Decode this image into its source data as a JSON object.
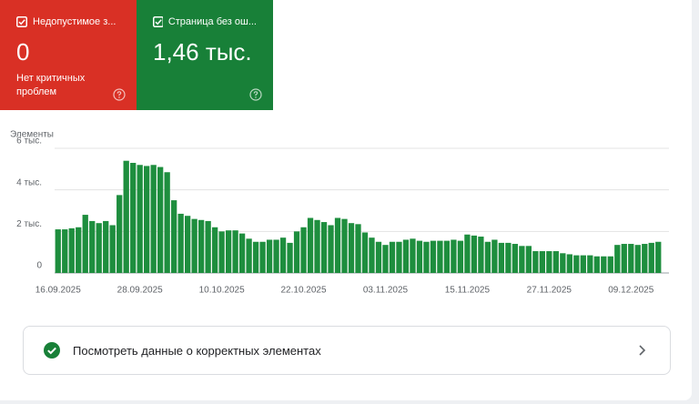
{
  "cards": [
    {
      "title": "Недопустимое з...",
      "value": "0",
      "subtitle": "Нет критичных проблем"
    },
    {
      "title": "Страница без ош...",
      "value": "1,46 тыс."
    }
  ],
  "chart_data": {
    "type": "bar",
    "y_axis_label": "Элементы",
    "color": "#1e8e3e",
    "grid": true,
    "ylim": [
      0,
      6000
    ],
    "yticks": [
      0,
      {
        "value": 2000,
        "label": "2 тыс."
      },
      {
        "value": 4000,
        "label": "4 тыс."
      },
      {
        "value": 6000,
        "label": "6 тыс."
      }
    ],
    "categories": [
      "16.09.2025",
      null,
      null,
      null,
      null,
      null,
      null,
      null,
      null,
      null,
      null,
      null,
      "28.09.2025",
      null,
      null,
      null,
      null,
      null,
      null,
      null,
      null,
      null,
      null,
      null,
      "10.10.2025",
      null,
      null,
      null,
      null,
      null,
      null,
      null,
      null,
      null,
      null,
      null,
      "22.10.2025",
      null,
      null,
      null,
      null,
      null,
      null,
      null,
      null,
      null,
      null,
      null,
      "03.11.2025",
      null,
      null,
      null,
      null,
      null,
      null,
      null,
      null,
      null,
      null,
      null,
      "15.11.2025",
      null,
      null,
      null,
      null,
      null,
      null,
      null,
      null,
      null,
      null,
      null,
      "27.11.2025",
      null,
      null,
      null,
      null,
      null,
      null,
      null,
      null,
      null,
      null,
      null,
      "09.12.2025",
      null,
      null,
      null,
      null
    ],
    "values": [
      2100,
      2100,
      2150,
      2200,
      2800,
      2500,
      2400,
      2500,
      2300,
      3750,
      5400,
      5300,
      5200,
      5150,
      5200,
      5100,
      4850,
      3500,
      2850,
      2750,
      2600,
      2550,
      2500,
      2200,
      2000,
      2050,
      2050,
      1900,
      1650,
      1500,
      1500,
      1600,
      1600,
      1700,
      1450,
      2000,
      2200,
      2650,
      2550,
      2450,
      2300,
      2650,
      2600,
      2400,
      2350,
      1950,
      1700,
      1500,
      1350,
      1500,
      1500,
      1600,
      1650,
      1550,
      1500,
      1550,
      1550,
      1550,
      1600,
      1550,
      1850,
      1800,
      1750,
      1500,
      1600,
      1450,
      1450,
      1400,
      1300,
      1300,
      1050,
      1050,
      1050,
      1050,
      950,
      900,
      850,
      850,
      850,
      800,
      800,
      800,
      1350,
      1400,
      1400,
      1350,
      1400,
      1450,
      1500
    ]
  },
  "link": {
    "label": "Посмотреть данные о корректных элементах"
  }
}
